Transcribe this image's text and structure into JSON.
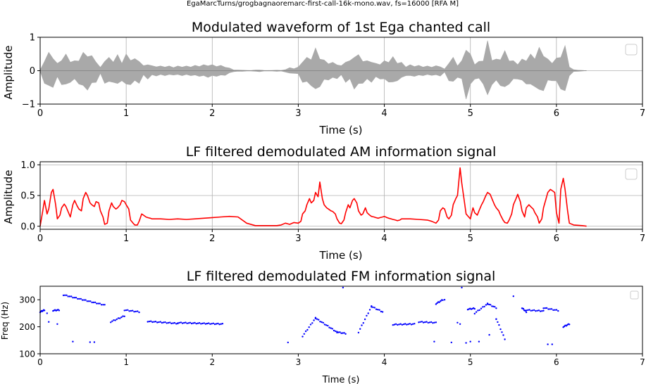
{
  "suptitle": "EgaMarcTurns/grogbagnaoremarc-first-call-16k-mono.wav, fs=16000 [RFA M]",
  "chart_data": [
    {
      "type": "area",
      "title": "Modulated waveform of 1st Ega chanted call",
      "xlabel": "Time (s)",
      "ylabel": "Amplitude",
      "xlim": [
        0,
        7
      ],
      "ylim": [
        -1,
        1
      ],
      "xticks": [
        "0",
        "1",
        "2",
        "3",
        "4",
        "5",
        "6",
        "7"
      ],
      "yticks": [
        "−1",
        "0",
        "1"
      ],
      "grid": true,
      "legend": "top-right, empty",
      "series": [
        {
          "color": "#a9a9a9",
          "x": [
            0.0,
            0.05,
            0.1,
            0.15,
            0.2,
            0.25,
            0.3,
            0.35,
            0.4,
            0.45,
            0.5,
            0.55,
            0.6,
            0.65,
            0.7,
            0.75,
            0.8,
            0.85,
            0.9,
            0.95,
            1.0,
            1.05,
            1.1,
            1.15,
            1.2,
            1.25,
            1.3,
            1.35,
            1.4,
            1.45,
            1.5,
            1.55,
            1.6,
            1.65,
            1.7,
            1.75,
            1.8,
            1.85,
            1.9,
            1.95,
            2.0,
            2.05,
            2.1,
            2.15,
            2.2,
            2.25,
            2.3,
            2.35,
            2.4,
            2.45,
            2.5,
            2.55,
            2.6,
            2.65,
            2.7,
            2.75,
            2.8,
            2.85,
            2.9,
            2.95,
            3.0,
            3.05,
            3.1,
            3.15,
            3.2,
            3.25,
            3.3,
            3.35,
            3.4,
            3.45,
            3.5,
            3.55,
            3.6,
            3.65,
            3.7,
            3.75,
            3.8,
            3.85,
            3.9,
            3.95,
            4.0,
            4.05,
            4.1,
            4.15,
            4.2,
            4.25,
            4.3,
            4.35,
            4.4,
            4.45,
            4.5,
            4.55,
            4.6,
            4.65,
            4.7,
            4.75,
            4.8,
            4.85,
            4.9,
            4.95,
            5.0,
            5.05,
            5.1,
            5.15,
            5.2,
            5.25,
            5.3,
            5.35,
            5.4,
            5.45,
            5.5,
            5.55,
            5.6,
            5.65,
            5.7,
            5.75,
            5.8,
            5.85,
            5.9,
            5.95,
            6.0,
            6.05,
            6.1,
            6.15,
            6.2,
            6.25,
            6.3,
            6.35
          ],
          "envelope": [
            0.02,
            0.38,
            0.55,
            0.5,
            0.22,
            0.42,
            0.5,
            0.35,
            0.3,
            0.4,
            0.55,
            0.58,
            0.45,
            0.35,
            0.1,
            0.38,
            0.4,
            0.35,
            0.48,
            0.3,
            0.5,
            0.42,
            0.36,
            0.38,
            0.15,
            0.25,
            0.15,
            0.16,
            0.14,
            0.15,
            0.14,
            0.13,
            0.14,
            0.15,
            0.14,
            0.15,
            0.16,
            0.17,
            0.18,
            0.2,
            0.18,
            0.17,
            0.16,
            0.14,
            0.08,
            0.03,
            0.02,
            0.02,
            0.01,
            0.01,
            0.02,
            0.03,
            0.01,
            0.01,
            0.01,
            0.02,
            0.01,
            0.04,
            0.09,
            0.08,
            0.11,
            0.35,
            0.4,
            0.45,
            0.68,
            0.48,
            0.32,
            0.28,
            0.25,
            0.24,
            0.15,
            0.35,
            0.3,
            0.55,
            0.48,
            0.38,
            0.3,
            0.35,
            0.22,
            0.25,
            0.3,
            0.34,
            0.42,
            0.3,
            0.25,
            0.15,
            0.18,
            0.17,
            0.16,
            0.15,
            0.14,
            0.14,
            0.15,
            0.16,
            0.05,
            0.3,
            0.4,
            0.2,
            0.3,
            0.85,
            0.5,
            0.25,
            0.28,
            0.4,
            0.9,
            0.42,
            0.35,
            0.45,
            0.6,
            0.4,
            0.3,
            0.25,
            0.35,
            0.4,
            0.5,
            0.48,
            0.7,
            0.6,
            0.35,
            0.3,
            0.38,
            0.55,
            0.75,
            0.15,
            0.03,
            0.02,
            0.01,
            0.0
          ]
        }
      ]
    },
    {
      "type": "line",
      "title": "LF filtered demodulated AM information signal",
      "xlabel": "Time (s)",
      "ylabel": "Amplitude",
      "xlim": [
        0,
        7
      ],
      "ylim": [
        -0.05,
        1.05
      ],
      "xticks": [
        "0",
        "1",
        "2",
        "3",
        "4",
        "5",
        "6",
        "7"
      ],
      "yticks": [
        "0.0",
        "0.5",
        "1.0"
      ],
      "grid": true,
      "legend": "top-right, empty",
      "series": [
        {
          "color": "#ff0000",
          "x": [
            0.0,
            0.03,
            0.05,
            0.08,
            0.1,
            0.13,
            0.15,
            0.18,
            0.2,
            0.23,
            0.25,
            0.28,
            0.3,
            0.33,
            0.35,
            0.38,
            0.4,
            0.43,
            0.45,
            0.48,
            0.5,
            0.53,
            0.55,
            0.58,
            0.6,
            0.63,
            0.65,
            0.68,
            0.7,
            0.73,
            0.75,
            0.78,
            0.8,
            0.83,
            0.85,
            0.88,
            0.9,
            0.93,
            0.95,
            0.98,
            1.0,
            1.03,
            1.05,
            1.08,
            1.1,
            1.13,
            1.15,
            1.18,
            1.2,
            1.23,
            1.25,
            1.28,
            1.3,
            1.4,
            1.5,
            1.6,
            1.7,
            1.8,
            1.9,
            2.0,
            2.1,
            2.2,
            2.3,
            2.4,
            2.5,
            2.6,
            2.7,
            2.75,
            2.8,
            2.85,
            2.9,
            2.95,
            3.0,
            3.03,
            3.05,
            3.08,
            3.1,
            3.13,
            3.15,
            3.18,
            3.2,
            3.23,
            3.25,
            3.28,
            3.3,
            3.33,
            3.35,
            3.38,
            3.4,
            3.43,
            3.45,
            3.48,
            3.5,
            3.53,
            3.55,
            3.58,
            3.6,
            3.63,
            3.65,
            3.68,
            3.7,
            3.73,
            3.75,
            3.78,
            3.8,
            3.83,
            3.85,
            3.88,
            3.9,
            3.93,
            3.95,
            3.98,
            4.0,
            4.03,
            4.05,
            4.08,
            4.1,
            4.13,
            4.15,
            4.18,
            4.2,
            4.3,
            4.4,
            4.5,
            4.55,
            4.6,
            4.63,
            4.65,
            4.68,
            4.7,
            4.73,
            4.75,
            4.78,
            4.8,
            4.83,
            4.85,
            4.88,
            4.9,
            4.93,
            4.95,
            4.98,
            5.0,
            5.03,
            5.05,
            5.08,
            5.1,
            5.13,
            5.15,
            5.18,
            5.2,
            5.23,
            5.25,
            5.28,
            5.3,
            5.33,
            5.35,
            5.38,
            5.4,
            5.43,
            5.45,
            5.48,
            5.5,
            5.53,
            5.55,
            5.58,
            5.6,
            5.63,
            5.65,
            5.68,
            5.7,
            5.73,
            5.75,
            5.78,
            5.8,
            5.83,
            5.85,
            5.88,
            5.9,
            5.93,
            5.95,
            5.98,
            6.0,
            6.03,
            6.05,
            6.08,
            6.1,
            6.13,
            6.15,
            6.2,
            6.3,
            6.35
          ],
          "values": [
            0.0,
            0.25,
            0.42,
            0.2,
            0.28,
            0.55,
            0.6,
            0.35,
            0.12,
            0.18,
            0.3,
            0.36,
            0.32,
            0.22,
            0.15,
            0.35,
            0.42,
            0.33,
            0.28,
            0.25,
            0.45,
            0.55,
            0.5,
            0.38,
            0.35,
            0.32,
            0.4,
            0.38,
            0.25,
            0.15,
            0.03,
            0.05,
            0.25,
            0.38,
            0.32,
            0.28,
            0.3,
            0.35,
            0.42,
            0.4,
            0.35,
            0.28,
            0.1,
            0.05,
            0.02,
            0.02,
            0.08,
            0.2,
            0.18,
            0.15,
            0.14,
            0.13,
            0.12,
            0.12,
            0.11,
            0.12,
            0.11,
            0.12,
            0.13,
            0.14,
            0.15,
            0.16,
            0.15,
            0.05,
            0.01,
            0.01,
            0.01,
            0.01,
            0.02,
            0.05,
            0.03,
            0.06,
            0.05,
            0.08,
            0.2,
            0.25,
            0.35,
            0.45,
            0.38,
            0.42,
            0.55,
            0.48,
            0.72,
            0.45,
            0.35,
            0.3,
            0.28,
            0.25,
            0.24,
            0.2,
            0.12,
            0.05,
            0.04,
            0.1,
            0.22,
            0.35,
            0.3,
            0.42,
            0.45,
            0.38,
            0.25,
            0.18,
            0.2,
            0.3,
            0.22,
            0.18,
            0.16,
            0.15,
            0.14,
            0.13,
            0.14,
            0.15,
            0.16,
            0.14,
            0.13,
            0.12,
            0.11,
            0.1,
            0.09,
            0.1,
            0.12,
            0.12,
            0.11,
            0.1,
            0.08,
            0.05,
            0.1,
            0.25,
            0.3,
            0.28,
            0.15,
            0.12,
            0.18,
            0.35,
            0.45,
            0.5,
            0.95,
            0.7,
            0.4,
            0.2,
            0.15,
            0.12,
            0.3,
            0.22,
            0.18,
            0.25,
            0.35,
            0.4,
            0.5,
            0.55,
            0.52,
            0.45,
            0.35,
            0.3,
            0.25,
            0.18,
            0.1,
            0.06,
            0.05,
            0.1,
            0.2,
            0.35,
            0.45,
            0.52,
            0.4,
            0.25,
            0.15,
            0.3,
            0.35,
            0.32,
            0.28,
            0.22,
            0.15,
            0.05,
            0.12,
            0.3,
            0.45,
            0.55,
            0.6,
            0.58,
            0.55,
            0.22,
            0.05,
            0.6,
            0.78,
            0.6,
            0.25,
            0.05,
            0.02,
            0.01,
            0.0
          ]
        }
      ]
    },
    {
      "type": "scatter",
      "title": "LF filtered demodulated FM information signal",
      "xlabel": "Time (s)",
      "ylabel": "Freq (Hz)",
      "xlim": [
        0,
        7
      ],
      "ylim": [
        100,
        350
      ],
      "xticks": [
        "0",
        "1",
        "2",
        "3",
        "4",
        "5",
        "6",
        "7"
      ],
      "yticks": [
        "100",
        "200",
        "300"
      ],
      "grid": false,
      "legend": "top-right, empty",
      "series": [
        {
          "color": "#0000ff",
          "segments": [
            {
              "x": [
                0.0,
                0.05,
                0.08
              ],
              "y": [
                255,
                262,
                258
              ]
            },
            {
              "x": [
                0.15,
                0.22
              ],
              "y": [
                260,
                262
              ]
            },
            {
              "x": [
                0.27,
                0.75
              ],
              "y": [
                318,
                280
              ]
            },
            {
              "x": [
                0.82,
                0.98
              ],
              "y": [
                218,
                240
              ]
            },
            {
              "x": [
                0.98,
                1.15
              ],
              "y": [
                262,
                255
              ]
            },
            {
              "x": [
                1.25,
                1.6
              ],
              "y": [
                220,
                212
              ]
            },
            {
              "x": [
                1.6,
                2.12
              ],
              "y": [
                215,
                210
              ]
            },
            {
              "x": [
                3.05,
                3.2
              ],
              "y": [
                165,
                232
              ]
            },
            {
              "x": [
                3.2,
                3.45
              ],
              "y": [
                232,
                180
              ]
            },
            {
              "x": [
                3.45,
                3.55
              ],
              "y": [
                180,
                175
              ]
            },
            {
              "x": [
                3.7,
                3.85
              ],
              "y": [
                180,
                275
              ]
            },
            {
              "x": [
                3.85,
                3.98
              ],
              "y": [
                275,
                255
              ]
            },
            {
              "x": [
                4.1,
                4.35
              ],
              "y": [
                208,
                210
              ]
            },
            {
              "x": [
                4.4,
                4.6
              ],
              "y": [
                218,
                215
              ]
            },
            {
              "x": [
                4.6,
                4.68
              ],
              "y": [
                285,
                300
              ]
            },
            {
              "x": [
                4.97,
                5.05
              ],
              "y": [
                265,
                268
              ]
            },
            {
              "x": [
                5.05,
                5.2
              ],
              "y": [
                250,
                285
              ]
            },
            {
              "x": [
                5.2,
                5.3
              ],
              "y": [
                285,
                270
              ]
            },
            {
              "x": [
                5.3,
                5.4
              ],
              "y": [
                230,
                155
              ]
            },
            {
              "x": [
                5.6,
                5.65
              ],
              "y": [
                270,
                255
              ]
            },
            {
              "x": [
                5.65,
                5.85
              ],
              "y": [
                262,
                258
              ]
            },
            {
              "x": [
                5.85,
                6.02
              ],
              "y": [
                270,
                260
              ]
            },
            {
              "x": [
                6.08,
                6.15
              ],
              "y": [
                200,
                210
              ]
            }
          ],
          "points": [
            [
              0.08,
              250
            ],
            [
              0.1,
              218
            ],
            [
              0.2,
              210
            ],
            [
              0.38,
              145
            ],
            [
              0.58,
              143
            ],
            [
              0.63,
              143
            ],
            [
              2.88,
              142
            ],
            [
              3.52,
              345
            ],
            [
              4.58,
              145
            ],
            [
              4.7,
              300
            ],
            [
              4.78,
              142
            ],
            [
              4.85,
              215
            ],
            [
              4.88,
              210
            ],
            [
              4.9,
              345
            ],
            [
              4.95,
              140
            ],
            [
              5.0,
              145
            ],
            [
              5.1,
              145
            ],
            [
              5.22,
              170
            ],
            [
              5.3,
              228
            ],
            [
              5.5,
              313
            ],
            [
              5.9,
              135
            ],
            [
              5.95,
              135
            ]
          ]
        }
      ]
    }
  ]
}
